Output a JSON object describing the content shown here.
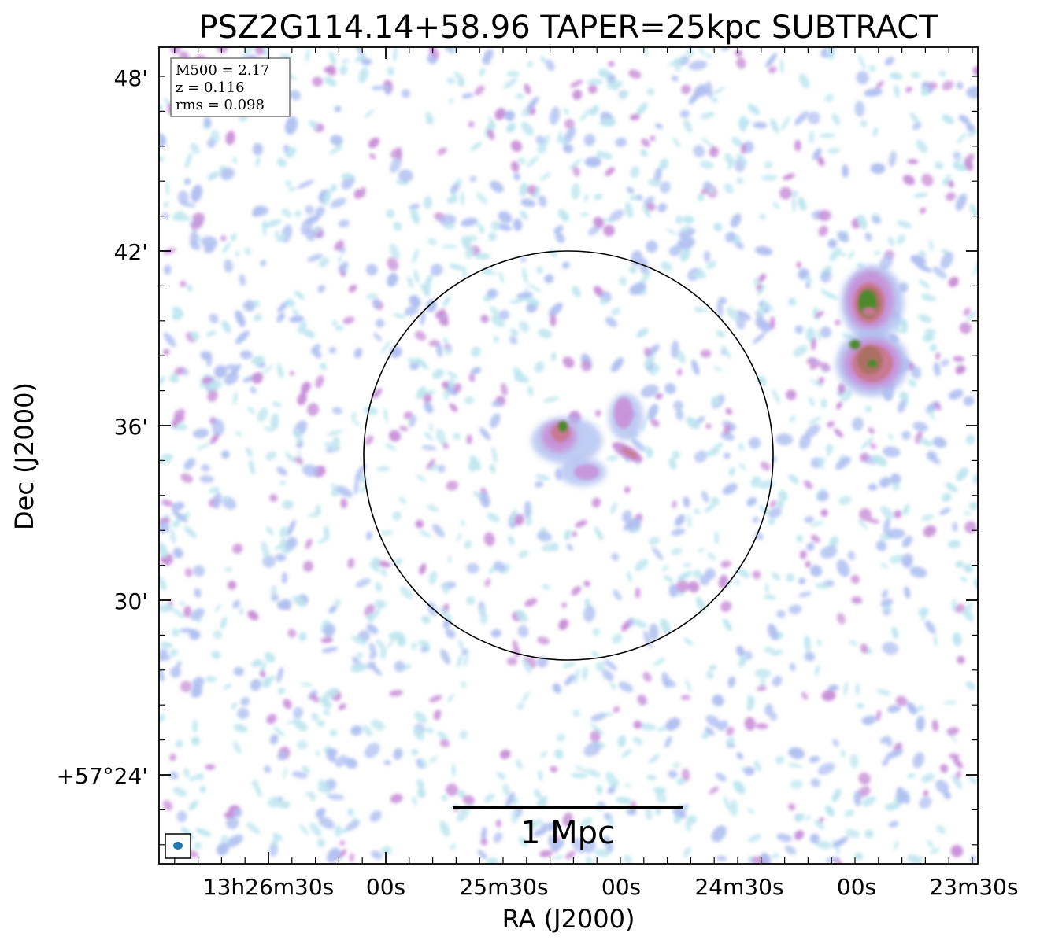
{
  "chart_data": {
    "type": "heatmap",
    "title": "PSZ2G114.14+58.96 TAPER=25kpc SUBTRACT",
    "xlabel": "RA (J2000)",
    "ylabel": "Dec (J2000)",
    "x_ticks": [
      "13h26m30s",
      "00s",
      "25m30s",
      "00s",
      "24m30s",
      "00s",
      "23m30s"
    ],
    "y_ticks": [
      "+57°24'",
      "30'",
      "36'",
      "42'",
      "48'"
    ],
    "info_box": [
      "M500 = 2.17",
      "z = 0.116",
      "rms = 0.098"
    ],
    "scale_bar_label": "1 Mpc",
    "colormap": [
      "#bfe6ee",
      "#b0c0f0",
      "#c890d8",
      "#c87890",
      "#a87060",
      "#4a8a2a"
    ],
    "circle_color": "#000000",
    "beam_color": "#1f77b4",
    "features": [
      {
        "name": "central-source",
        "level": 5
      },
      {
        "name": "east-source-upper",
        "level": 5
      },
      {
        "name": "east-source-lower",
        "level": 4
      }
    ]
  }
}
